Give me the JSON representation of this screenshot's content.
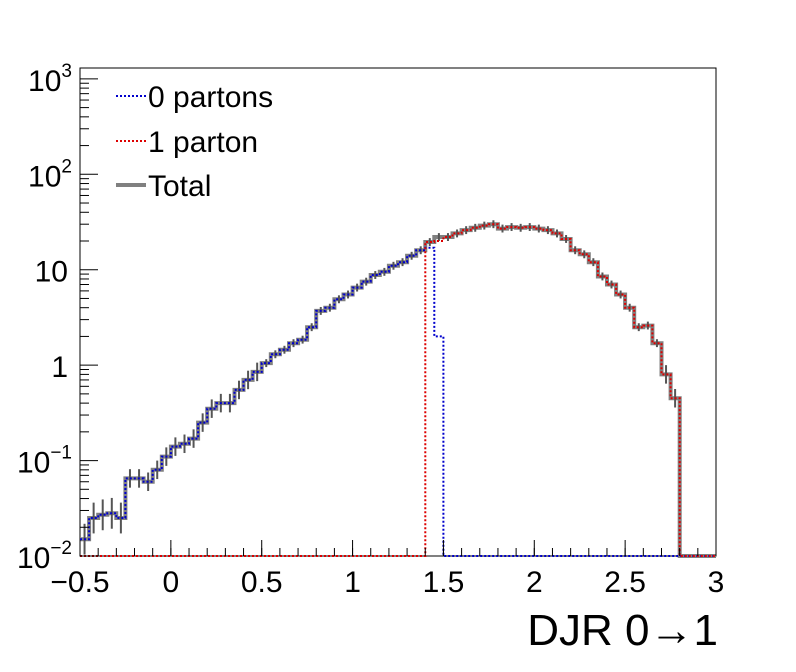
{
  "chart_data": {
    "type": "step-histogram",
    "xlabel": "DJR 0→1",
    "ylabel": "",
    "xlim": [
      -0.5,
      3
    ],
    "ylim": [
      0.01,
      1300
    ],
    "yscale": "log",
    "grid": false,
    "legend_placement": "top-left",
    "x_ticks": [
      "−0.5",
      "0",
      "0.5",
      "1",
      "1.5",
      "2",
      "2.5",
      "3"
    ],
    "x_tick_values": [
      -0.5,
      0,
      0.5,
      1,
      1.5,
      2,
      2.5,
      3
    ],
    "y_ticks": [
      {
        "value": 1000,
        "base": "10",
        "exp": "3"
      },
      {
        "value": 100,
        "base": "10",
        "exp": "2"
      },
      {
        "value": 10,
        "base": "10",
        "exp": ""
      },
      {
        "value": 1,
        "base": "1",
        "exp": ""
      },
      {
        "value": 0.1,
        "base": "10",
        "exp": "−1"
      },
      {
        "value": 0.01,
        "base": "10",
        "exp": "−2"
      }
    ],
    "bin_edges": [
      -0.5,
      -0.45,
      -0.4,
      -0.35,
      -0.3,
      -0.25,
      -0.2,
      -0.15,
      -0.1,
      -0.05,
      0,
      0.05,
      0.1,
      0.15,
      0.2,
      0.25,
      0.3,
      0.35,
      0.4,
      0.45,
      0.5,
      0.55,
      0.6,
      0.65,
      0.7,
      0.75,
      0.8,
      0.85,
      0.9,
      0.95,
      1,
      1.05,
      1.1,
      1.15,
      1.2,
      1.25,
      1.3,
      1.35,
      1.4,
      1.45,
      1.5,
      1.55,
      1.6,
      1.65,
      1.7,
      1.75,
      1.8,
      1.85,
      1.9,
      1.95,
      2,
      2.05,
      2.1,
      2.15,
      2.2,
      2.25,
      2.3,
      2.35,
      2.4,
      2.45,
      2.5,
      2.55,
      2.6,
      2.65,
      2.7,
      2.75,
      2.8,
      2.85,
      2.9,
      2.95,
      3
    ],
    "series": [
      {
        "name": "0 partons",
        "color": "#0000cc",
        "style": "dotted",
        "values": [
          0.015,
          0.025,
          0.027,
          0.028,
          0.025,
          0.065,
          0.065,
          0.06,
          0.08,
          0.11,
          0.14,
          0.15,
          0.17,
          0.25,
          0.35,
          0.4,
          0.4,
          0.55,
          0.7,
          0.85,
          1.05,
          1.3,
          1.45,
          1.7,
          1.85,
          2.5,
          3.7,
          4.0,
          4.9,
          5.5,
          6.5,
          7.5,
          8.8,
          9.5,
          11,
          12,
          14,
          16,
          17,
          2.0,
          0.01,
          0.01,
          0.01,
          0.01,
          0.01,
          0.01,
          0.01,
          0.01,
          0.01,
          0.01,
          0.01,
          0.01,
          0.01,
          0.01,
          0.01,
          0.01,
          0.01,
          0.01,
          0.01,
          0.01,
          0.01,
          0.01,
          0.01,
          0.01,
          0.01,
          0.01,
          0.01,
          0.01,
          0.01,
          0.01
        ]
      },
      {
        "name": "1 parton",
        "color": "#dd0000",
        "style": "dotted",
        "values": [
          0.01,
          0.01,
          0.01,
          0.01,
          0.01,
          0.01,
          0.01,
          0.01,
          0.01,
          0.01,
          0.01,
          0.01,
          0.01,
          0.01,
          0.01,
          0.01,
          0.01,
          0.01,
          0.01,
          0.01,
          0.01,
          0.01,
          0.01,
          0.01,
          0.01,
          0.01,
          0.01,
          0.01,
          0.01,
          0.01,
          0.01,
          0.01,
          0.01,
          0.01,
          0.01,
          0.01,
          0.01,
          0.01,
          19.5,
          20,
          22,
          24,
          26,
          27.5,
          29,
          30,
          27,
          28,
          27.5,
          28,
          27,
          26,
          24,
          21,
          16,
          14.5,
          12,
          8.5,
          7,
          5.5,
          4,
          2.5,
          2.6,
          1.7,
          0.8,
          0.45
        ]
      },
      {
        "name": "Total",
        "color": "#808080",
        "style": "solid",
        "values": [
          0.015,
          0.025,
          0.027,
          0.028,
          0.025,
          0.065,
          0.065,
          0.06,
          0.08,
          0.11,
          0.14,
          0.15,
          0.17,
          0.25,
          0.35,
          0.4,
          0.4,
          0.55,
          0.7,
          0.85,
          1.05,
          1.3,
          1.45,
          1.7,
          1.85,
          2.5,
          3.7,
          4.0,
          4.9,
          5.5,
          6.5,
          7.5,
          8.8,
          9.5,
          11,
          12,
          14,
          16,
          19.5,
          22,
          22,
          24,
          26,
          27.5,
          29,
          30,
          27,
          28,
          27.5,
          28,
          27,
          26,
          24,
          21,
          16,
          14.5,
          12,
          8.5,
          7,
          5.5,
          4,
          2.5,
          2.6,
          1.7,
          0.8,
          0.45
        ]
      }
    ],
    "note_bins": "series values index into bin_edges; bins beyond listed values are empty"
  }
}
